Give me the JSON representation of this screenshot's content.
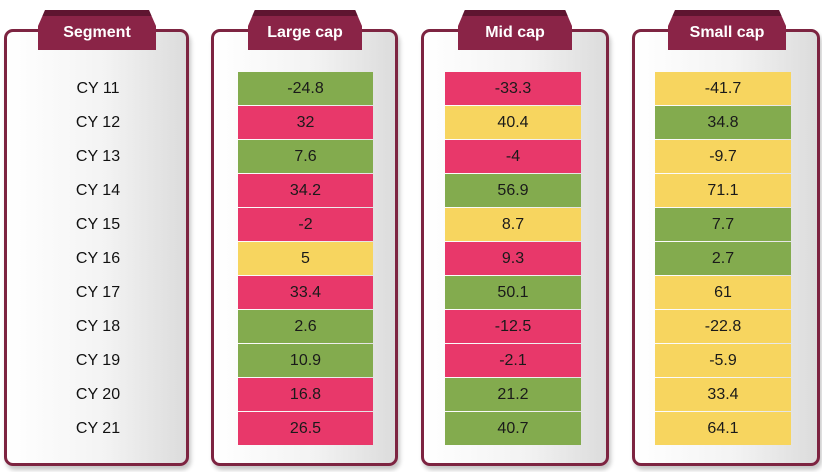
{
  "chart_data": {
    "type": "table",
    "columns": [
      "Segment",
      "Large cap",
      "Mid cap",
      "Small cap"
    ],
    "rows": [
      "CY 11",
      "CY 12",
      "CY 13",
      "CY 14",
      "CY 15",
      "CY 16",
      "CY 17",
      "CY 18",
      "CY 19",
      "CY 20",
      "CY 21"
    ],
    "series": [
      {
        "name": "Large cap",
        "values": [
          "-24.8",
          "32",
          "7.6",
          "34.2",
          "-2",
          "5",
          "33.4",
          "2.6",
          "10.9",
          "16.8",
          "26.5"
        ],
        "colors": [
          "green",
          "red",
          "green",
          "red",
          "red",
          "yellow",
          "red",
          "green",
          "green",
          "red",
          "red"
        ]
      },
      {
        "name": "Mid cap",
        "values": [
          "-33.3",
          "40.4",
          "-4",
          "56.9",
          "8.7",
          "9.3",
          "50.1",
          "-12.5",
          "-2.1",
          "21.2",
          "40.7"
        ],
        "colors": [
          "red",
          "yellow",
          "red",
          "green",
          "yellow",
          "red",
          "green",
          "red",
          "red",
          "green",
          "green"
        ]
      },
      {
        "name": "Small cap",
        "values": [
          "-41.7",
          "34.8",
          "-9.7",
          "71.1",
          "7.7",
          "2.7",
          "61",
          "-22.8",
          "-5.9",
          "33.4",
          "64.1"
        ],
        "colors": [
          "yellow",
          "green",
          "yellow",
          "yellow",
          "green",
          "green",
          "yellow",
          "yellow",
          "yellow",
          "yellow",
          "yellow"
        ]
      }
    ]
  },
  "palette": {
    "green": "#83ab4e",
    "red": "#e8386a",
    "yellow": "#f7d55f",
    "tab": "#8a2447",
    "border": "#7d2441"
  }
}
